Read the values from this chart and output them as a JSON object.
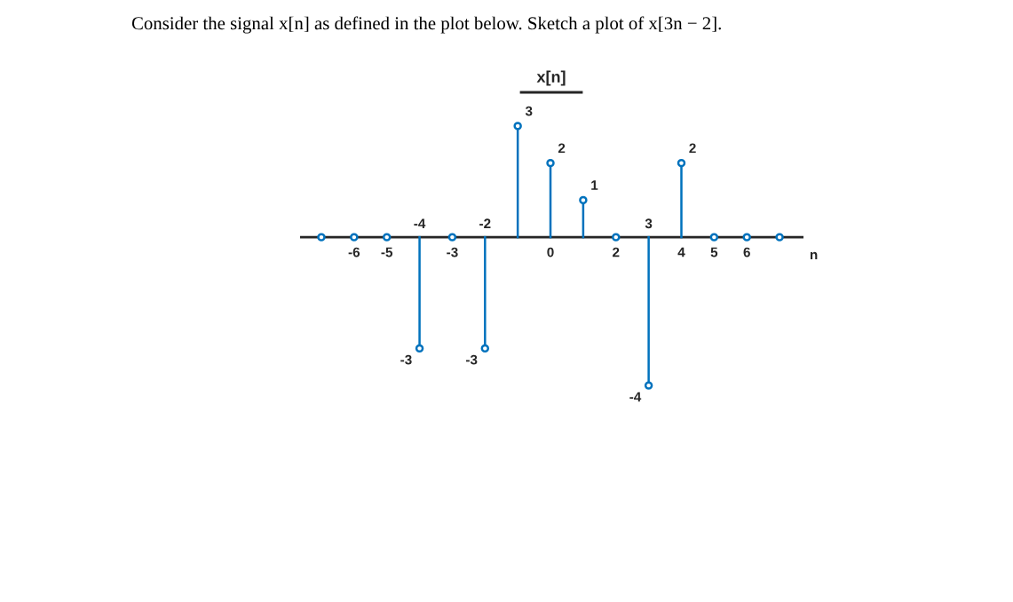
{
  "chart_data": {
    "type": "lollipop",
    "title": "x[n]",
    "xlabel": "n",
    "annotations": [
      "Consider the signal x[n] as defined in the plot below. Sketch a plot of x[3n − 2]."
    ],
    "categories": [
      null,
      "-6",
      "-5",
      "-4",
      "-3",
      "-2",
      null,
      "0",
      null,
      "2",
      "3",
      "4",
      "5",
      "6",
      null
    ],
    "values": [
      0,
      0,
      0,
      -3,
      0,
      -3,
      3,
      2,
      1,
      0,
      -4,
      2,
      0,
      0,
      0
    ],
    "value_labels": [
      null,
      null,
      null,
      "-3",
      null,
      "-3",
      "3",
      "2",
      "1",
      null,
      "-4",
      "2",
      null,
      null,
      null
    ],
    "color": "#0072bd",
    "marker": "circle"
  }
}
